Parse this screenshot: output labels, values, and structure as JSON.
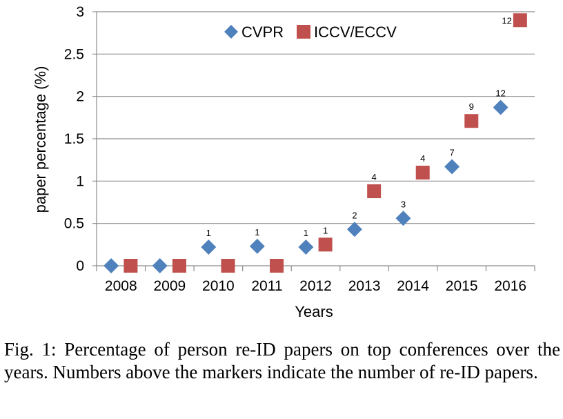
{
  "chart_data": {
    "type": "scatter",
    "categories": [
      "2008",
      "2009",
      "2010",
      "2011",
      "2012",
      "2013",
      "2014",
      "2015",
      "2016"
    ],
    "ylabel": "paper percentage (%)",
    "xlabel": "Years",
    "ylim": [
      0,
      3
    ],
    "yticks": [
      "0",
      "0.5",
      "1",
      "1.5",
      "2",
      "2.5",
      "3"
    ],
    "grid": true,
    "legend": "top-center",
    "series": [
      {
        "name": "CVPR",
        "marker": "diamond",
        "color": "#4f81bd",
        "values": [
          0,
          0,
          0.22,
          0.23,
          0.22,
          0.43,
          0.56,
          1.17,
          1.87
        ],
        "labels": [
          "",
          "",
          "1",
          "1",
          "1",
          "2",
          "3",
          "7",
          "12"
        ]
      },
      {
        "name": "ICCV/ECCV",
        "marker": "square",
        "color": "#c0504d",
        "values": [
          0,
          0,
          0,
          0,
          0.25,
          0.88,
          1.1,
          1.71,
          2.9
        ],
        "labels": [
          "",
          "",
          "",
          "",
          "1",
          "4",
          "4",
          "9",
          "12"
        ]
      }
    ]
  },
  "caption": "Fig. 1: Percentage of person re-ID papers on top conferences over the years. Numbers above the markers indicate the number of re-ID papers."
}
